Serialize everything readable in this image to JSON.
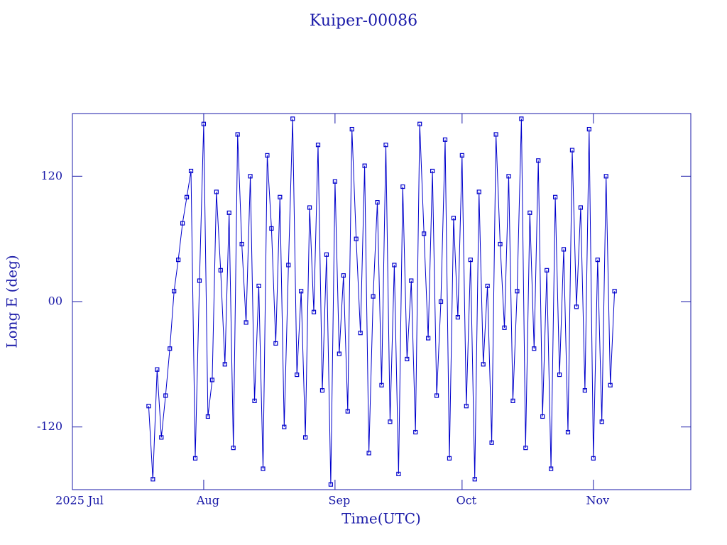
{
  "chart_data": {
    "type": "line",
    "title": "Kuiper-00086",
    "xlabel": "Time(UTC)",
    "ylabel": "Long E (deg)",
    "color": "#0000cc",
    "xlim": [
      0,
      146
    ],
    "xticks": [
      {
        "value": 0,
        "label": "2025 Jul"
      },
      {
        "value": 31,
        "label": "Aug"
      },
      {
        "value": 62,
        "label": "Sep"
      },
      {
        "value": 92,
        "label": "Oct"
      },
      {
        "value": 123,
        "label": "Nov"
      }
    ],
    "ylim": [
      -180,
      180
    ],
    "yticks": [
      -120,
      {
        "value": 0,
        "label": "00"
      },
      120
    ],
    "x": [
      18,
      19,
      20,
      21,
      22,
      23,
      24,
      25,
      26,
      27,
      28,
      29,
      30,
      31,
      32,
      33,
      34,
      35,
      36,
      37,
      38,
      39,
      40,
      41,
      42,
      43,
      44,
      45,
      46,
      47,
      48,
      49,
      50,
      51,
      52,
      53,
      54,
      55,
      56,
      57,
      58,
      59,
      60,
      61,
      62,
      63,
      64,
      65,
      66,
      67,
      68,
      69,
      70,
      71,
      72,
      73,
      74,
      75,
      76,
      77,
      78,
      79,
      80,
      81,
      82,
      83,
      84,
      85,
      86,
      87,
      88,
      89,
      90,
      91,
      92,
      93,
      94,
      95,
      96,
      97,
      98,
      99,
      100,
      101,
      102,
      103,
      104,
      105,
      106,
      107,
      108,
      109,
      110,
      111,
      112,
      113,
      114,
      115,
      116,
      117,
      118,
      119,
      120,
      121,
      122,
      123,
      124,
      125,
      126,
      127,
      128
    ],
    "y": [
      -100,
      -170,
      -65,
      -130,
      -90,
      -45,
      10,
      40,
      75,
      100,
      125,
      -150,
      20,
      170,
      -110,
      -75,
      105,
      30,
      -60,
      85,
      -140,
      160,
      55,
      -20,
      120,
      -95,
      15,
      -160,
      140,
      70,
      -40,
      100,
      -120,
      35,
      175,
      -70,
      10,
      -130,
      90,
      -10,
      150,
      -85,
      45,
      -175,
      115,
      -50,
      25,
      -105,
      165,
      60,
      -30,
      130,
      -145,
      5,
      95,
      -80,
      150,
      -115,
      35,
      -165,
      110,
      -55,
      20,
      -125,
      170,
      65,
      -35,
      125,
      -90,
      0,
      155,
      -150,
      80,
      -15,
      140,
      -100,
      40,
      -170,
      105,
      -60,
      15,
      -135,
      160,
      55,
      -25,
      120,
      -95,
      10,
      175,
      -140,
      85,
      -45,
      135,
      -110,
      30,
      -160,
      100,
      -70,
      50,
      -125,
      145,
      -5,
      90,
      -85,
      165,
      -150,
      40,
      -115,
      120,
      -80,
      10
    ]
  }
}
